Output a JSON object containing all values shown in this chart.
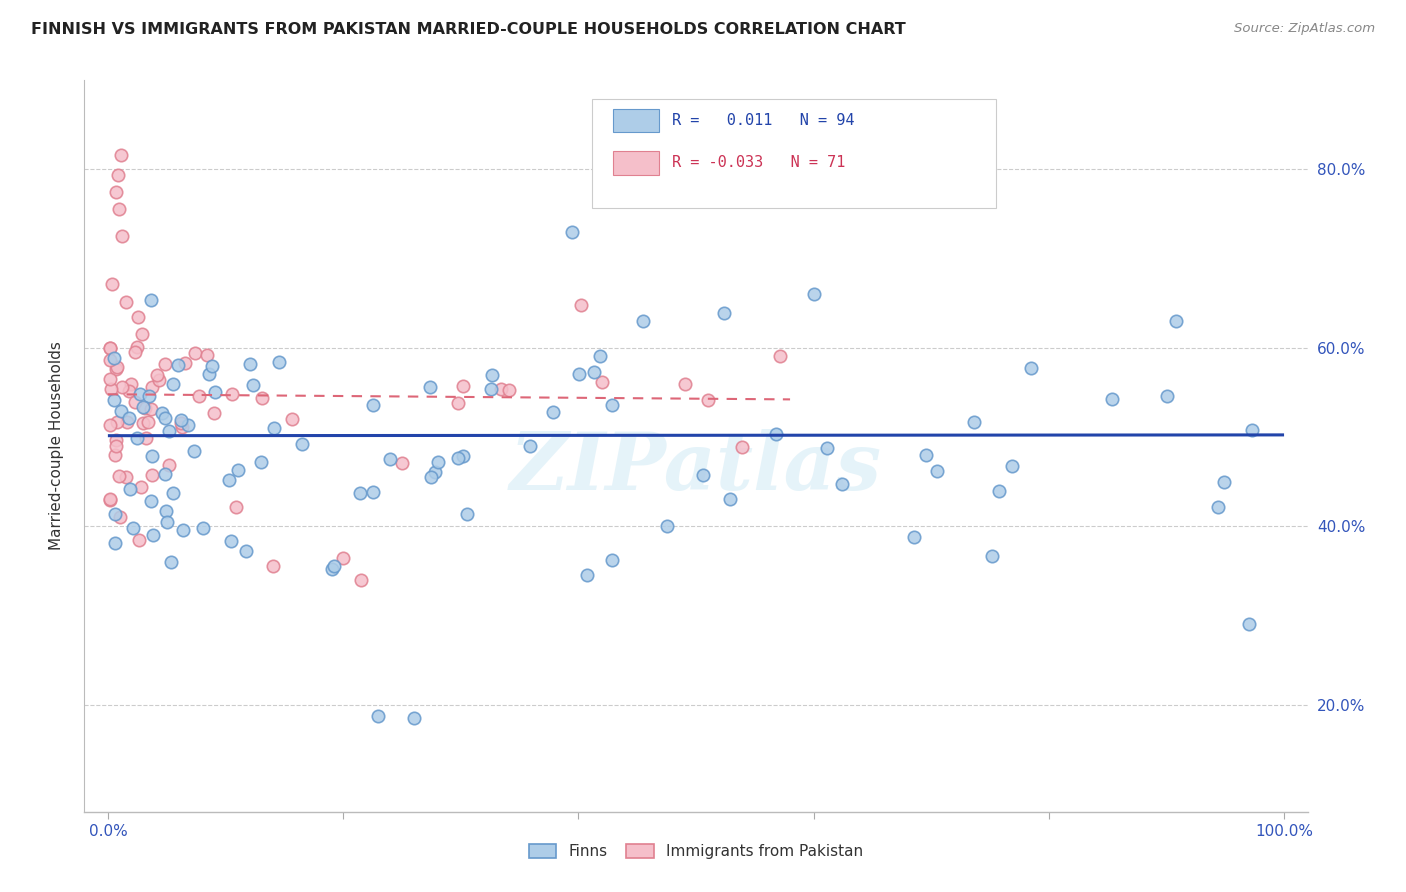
{
  "title": "FINNISH VS IMMIGRANTS FROM PAKISTAN MARRIED-COUPLE HOUSEHOLDS CORRELATION CHART",
  "source": "Source: ZipAtlas.com",
  "ylabel": "Married-couple Households",
  "xlim": [
    -0.02,
    1.02
  ],
  "ylim": [
    0.08,
    0.9
  ],
  "xticks": [
    0.0,
    0.2,
    0.4,
    0.6,
    0.8,
    1.0
  ],
  "xticklabels": [
    "0.0%",
    "",
    "",
    "",
    "",
    "100.0%"
  ],
  "yticks": [
    0.2,
    0.4,
    0.6,
    0.8
  ],
  "yticklabels": [
    "20.0%",
    "40.0%",
    "60.0%",
    "80.0%"
  ],
  "blue_color": "#aecde8",
  "blue_edge_color": "#6699cc",
  "pink_color": "#f5bfca",
  "pink_edge_color": "#e08090",
  "blue_line_color": "#2244aa",
  "pink_line_color": "#dd6677",
  "watermark": "ZIPatlas",
  "R_finns": 0.011,
  "R_pakistan": -0.033,
  "N_finns": 94,
  "N_pakistan": 71,
  "legend_blue_color": "#aecde8",
  "legend_pink_color": "#f5bfca",
  "legend_text_blue": "#2244aa",
  "legend_text_pink": "#cc3355"
}
